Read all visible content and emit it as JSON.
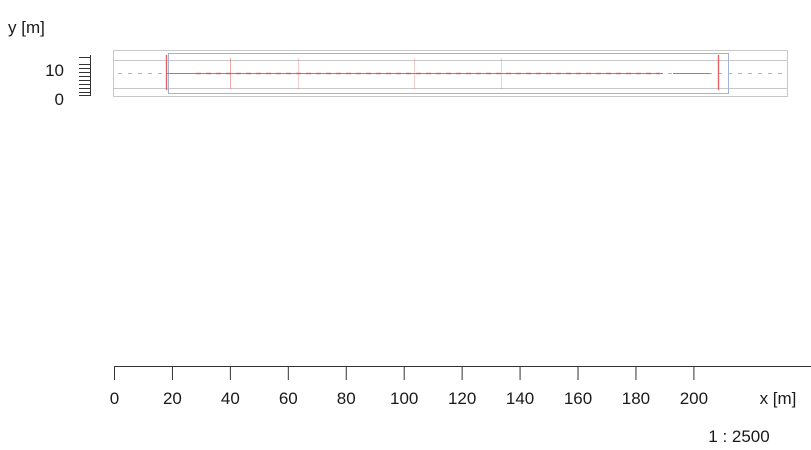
{
  "axes": {
    "y_label": "y [m]",
    "x_unit": "x [m]",
    "y_ticks": [
      {
        "value": 10,
        "label": "10"
      },
      {
        "value": 0,
        "label": "0"
      }
    ],
    "x_ticks": [
      {
        "value": 0,
        "label": "0"
      },
      {
        "value": 20,
        "label": "20"
      },
      {
        "value": 40,
        "label": "40"
      },
      {
        "value": 60,
        "label": "60"
      },
      {
        "value": 80,
        "label": "80"
      },
      {
        "value": 100,
        "label": "100"
      },
      {
        "value": 120,
        "label": "120"
      },
      {
        "value": 140,
        "label": "140"
      },
      {
        "value": 160,
        "label": "160"
      },
      {
        "value": 180,
        "label": "180"
      },
      {
        "value": 200,
        "label": "200"
      }
    ]
  },
  "scale_text": "1 : 2500",
  "colors": {
    "text": "#1a1a1a",
    "axis": "#333333",
    "frame": "#c8c8c8",
    "structure": "#e06464",
    "centerline": "#b4b4b4",
    "blue_outline": "#9fb4d8"
  }
}
